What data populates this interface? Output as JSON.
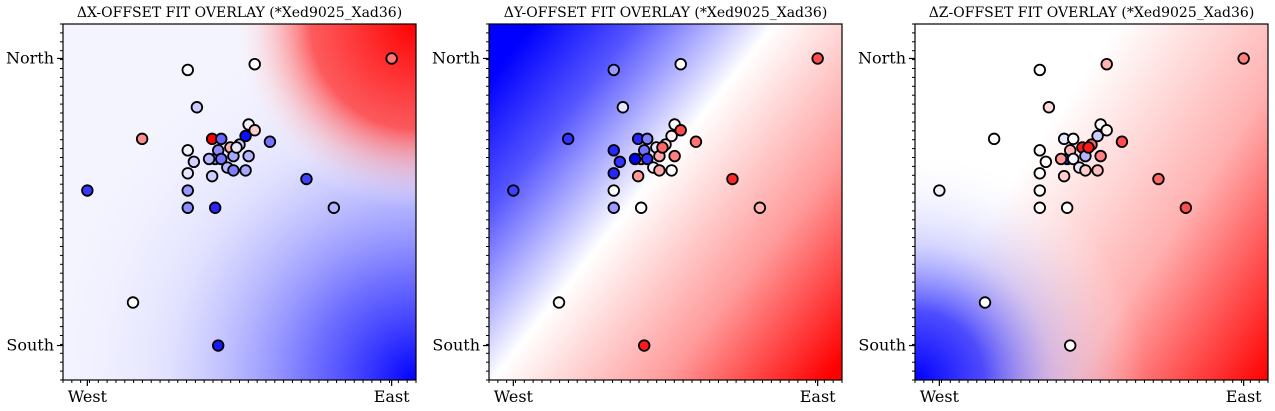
{
  "chart_data": [
    {
      "type": "heatmap-scatter",
      "title": "ΔX-OFFSET FIT OVERLAY (*Xed9025_Xad36)",
      "xticks": [
        "West",
        "East"
      ],
      "yticks": [
        "North",
        "South"
      ],
      "xlim": [
        -0.08,
        1.08
      ],
      "ylim": [
        -0.12,
        1.12
      ],
      "colormap": [
        "#0000ff",
        "#ffffff",
        "#ff0000"
      ],
      "points": [
        {
          "x": 0.0,
          "y": 0.54,
          "v": -0.78
        },
        {
          "x": 0.15,
          "y": 0.15,
          "v": 0.0
        },
        {
          "x": 0.18,
          "y": 0.72,
          "v": 0.45
        },
        {
          "x": 0.33,
          "y": 0.96,
          "v": -0.02
        },
        {
          "x": 0.55,
          "y": 0.98,
          "v": 0.0
        },
        {
          "x": 1.0,
          "y": 1.0,
          "v": 0.55
        },
        {
          "x": 0.33,
          "y": 0.68,
          "v": -0.05
        },
        {
          "x": 0.36,
          "y": 0.83,
          "v": -0.2
        },
        {
          "x": 0.35,
          "y": 0.64,
          "v": -0.18
        },
        {
          "x": 0.41,
          "y": 0.72,
          "v": 1.0
        },
        {
          "x": 0.42,
          "y": 0.65,
          "v": -0.38
        },
        {
          "x": 0.47,
          "y": 0.69,
          "v": 0.3
        },
        {
          "x": 0.43,
          "y": 0.68,
          "v": -0.45
        },
        {
          "x": 0.5,
          "y": 0.7,
          "v": -0.22
        },
        {
          "x": 0.52,
          "y": 0.73,
          "v": -0.95
        },
        {
          "x": 0.53,
          "y": 0.77,
          "v": -0.05
        },
        {
          "x": 0.55,
          "y": 0.75,
          "v": 0.2
        },
        {
          "x": 0.6,
          "y": 0.71,
          "v": -0.55
        },
        {
          "x": 0.48,
          "y": 0.66,
          "v": -0.35
        },
        {
          "x": 0.53,
          "y": 0.66,
          "v": -0.3
        },
        {
          "x": 0.4,
          "y": 0.65,
          "v": -0.3
        },
        {
          "x": 0.44,
          "y": 0.65,
          "v": -0.55
        },
        {
          "x": 0.46,
          "y": 0.62,
          "v": -0.28
        },
        {
          "x": 0.48,
          "y": 0.61,
          "v": -0.5
        },
        {
          "x": 0.52,
          "y": 0.61,
          "v": -0.35
        },
        {
          "x": 0.33,
          "y": 0.54,
          "v": -0.4
        },
        {
          "x": 0.41,
          "y": 0.59,
          "v": -0.2
        },
        {
          "x": 0.72,
          "y": 0.58,
          "v": -0.75
        },
        {
          "x": 0.33,
          "y": 0.48,
          "v": -0.45
        },
        {
          "x": 0.42,
          "y": 0.48,
          "v": -0.85
        },
        {
          "x": 0.33,
          "y": 0.6,
          "v": -0.1
        },
        {
          "x": 0.81,
          "y": 0.48,
          "v": -0.3
        },
        {
          "x": 0.49,
          "y": 0.69,
          "v": -0.1
        },
        {
          "x": 0.44,
          "y": 0.72,
          "v": -0.6
        },
        {
          "x": 0.43,
          "y": 0.0,
          "v": -0.9
        }
      ]
    },
    {
      "type": "heatmap-scatter",
      "title": "ΔY-OFFSET FIT OVERLAY (*Xed9025_Xad36)",
      "xticks": [
        "West",
        "East"
      ],
      "yticks": [
        "North",
        "South"
      ],
      "xlim": [
        -0.08,
        1.08
      ],
      "ylim": [
        -0.12,
        1.12
      ],
      "colormap": [
        "#0000ff",
        "#ffffff",
        "#ff0000"
      ],
      "points": [
        {
          "x": 0.0,
          "y": 0.54,
          "v": -0.75
        },
        {
          "x": 0.15,
          "y": 0.15,
          "v": 0.0
        },
        {
          "x": 0.18,
          "y": 0.72,
          "v": -0.8
        },
        {
          "x": 0.33,
          "y": 0.96,
          "v": -0.4
        },
        {
          "x": 0.55,
          "y": 0.98,
          "v": 0.0
        },
        {
          "x": 1.0,
          "y": 1.0,
          "v": 0.7
        },
        {
          "x": 0.33,
          "y": 0.68,
          "v": -0.85
        },
        {
          "x": 0.36,
          "y": 0.83,
          "v": -0.1
        },
        {
          "x": 0.35,
          "y": 0.64,
          "v": -0.8
        },
        {
          "x": 0.41,
          "y": 0.72,
          "v": -0.85
        },
        {
          "x": 0.42,
          "y": 0.65,
          "v": 0.4
        },
        {
          "x": 0.47,
          "y": 0.69,
          "v": -0.1
        },
        {
          "x": 0.43,
          "y": 0.68,
          "v": -0.55
        },
        {
          "x": 0.5,
          "y": 0.7,
          "v": 0.1
        },
        {
          "x": 0.52,
          "y": 0.73,
          "v": 0.05
        },
        {
          "x": 0.53,
          "y": 0.77,
          "v": 0.0
        },
        {
          "x": 0.55,
          "y": 0.75,
          "v": 0.7
        },
        {
          "x": 0.6,
          "y": 0.71,
          "v": 0.55
        },
        {
          "x": 0.48,
          "y": 0.66,
          "v": 0.35
        },
        {
          "x": 0.53,
          "y": 0.66,
          "v": 0.5
        },
        {
          "x": 0.4,
          "y": 0.65,
          "v": -1.0
        },
        {
          "x": 0.44,
          "y": 0.65,
          "v": -0.8
        },
        {
          "x": 0.46,
          "y": 0.62,
          "v": -0.05
        },
        {
          "x": 0.48,
          "y": 0.61,
          "v": 0.35
        },
        {
          "x": 0.52,
          "y": 0.61,
          "v": 0.0
        },
        {
          "x": 0.33,
          "y": 0.54,
          "v": 0.0
        },
        {
          "x": 0.41,
          "y": 0.59,
          "v": 0.4
        },
        {
          "x": 0.72,
          "y": 0.58,
          "v": 0.85
        },
        {
          "x": 0.33,
          "y": 0.48,
          "v": -0.4
        },
        {
          "x": 0.42,
          "y": 0.48,
          "v": 0.0
        },
        {
          "x": 0.33,
          "y": 0.6,
          "v": -0.85
        },
        {
          "x": 0.81,
          "y": 0.48,
          "v": 0.3
        },
        {
          "x": 0.49,
          "y": 0.69,
          "v": 0.6
        },
        {
          "x": 0.44,
          "y": 0.72,
          "v": -0.5
        },
        {
          "x": 0.43,
          "y": 0.0,
          "v": 0.9
        }
      ]
    },
    {
      "type": "heatmap-scatter",
      "title": "ΔZ-OFFSET FIT OVERLAY (*Xed9025_Xad36)",
      "xticks": [
        "West",
        "East"
      ],
      "yticks": [
        "North",
        "South"
      ],
      "xlim": [
        -0.08,
        1.08
      ],
      "ylim": [
        -0.12,
        1.12
      ],
      "colormap": [
        "#0000ff",
        "#ffffff",
        "#ff0000"
      ],
      "points": [
        {
          "x": 0.0,
          "y": 0.54,
          "v": -0.05
        },
        {
          "x": 0.15,
          "y": 0.15,
          "v": 0.0
        },
        {
          "x": 0.18,
          "y": 0.72,
          "v": 0.0
        },
        {
          "x": 0.33,
          "y": 0.96,
          "v": 0.0
        },
        {
          "x": 0.55,
          "y": 0.98,
          "v": 0.3
        },
        {
          "x": 1.0,
          "y": 1.0,
          "v": 0.5
        },
        {
          "x": 0.33,
          "y": 0.68,
          "v": -0.02
        },
        {
          "x": 0.36,
          "y": 0.83,
          "v": 0.15
        },
        {
          "x": 0.35,
          "y": 0.64,
          "v": 0.0
        },
        {
          "x": 0.41,
          "y": 0.72,
          "v": -0.1
        },
        {
          "x": 0.42,
          "y": 0.65,
          "v": -0.9
        },
        {
          "x": 0.47,
          "y": 0.69,
          "v": 0.9
        },
        {
          "x": 0.43,
          "y": 0.68,
          "v": 0.3
        },
        {
          "x": 0.5,
          "y": 0.7,
          "v": 0.6
        },
        {
          "x": 0.52,
          "y": 0.73,
          "v": -0.2
        },
        {
          "x": 0.53,
          "y": 0.77,
          "v": 0.0
        },
        {
          "x": 0.55,
          "y": 0.75,
          "v": 0.05
        },
        {
          "x": 0.6,
          "y": 0.71,
          "v": 0.7
        },
        {
          "x": 0.48,
          "y": 0.66,
          "v": -0.3
        },
        {
          "x": 0.53,
          "y": 0.66,
          "v": 0.5
        },
        {
          "x": 0.4,
          "y": 0.65,
          "v": 0.4
        },
        {
          "x": 0.44,
          "y": 0.65,
          "v": -0.05
        },
        {
          "x": 0.46,
          "y": 0.62,
          "v": -0.1
        },
        {
          "x": 0.48,
          "y": 0.61,
          "v": 0.2
        },
        {
          "x": 0.52,
          "y": 0.61,
          "v": 0.25
        },
        {
          "x": 0.33,
          "y": 0.54,
          "v": 0.0
        },
        {
          "x": 0.41,
          "y": 0.59,
          "v": 0.2
        },
        {
          "x": 0.72,
          "y": 0.58,
          "v": 0.6
        },
        {
          "x": 0.33,
          "y": 0.48,
          "v": 0.0
        },
        {
          "x": 0.42,
          "y": 0.48,
          "v": 0.0
        },
        {
          "x": 0.33,
          "y": 0.6,
          "v": 0.0
        },
        {
          "x": 0.81,
          "y": 0.48,
          "v": 0.7
        },
        {
          "x": 0.49,
          "y": 0.69,
          "v": 0.9
        },
        {
          "x": 0.44,
          "y": 0.72,
          "v": 0.0
        },
        {
          "x": 0.43,
          "y": 0.0,
          "v": 0.0
        }
      ]
    }
  ]
}
